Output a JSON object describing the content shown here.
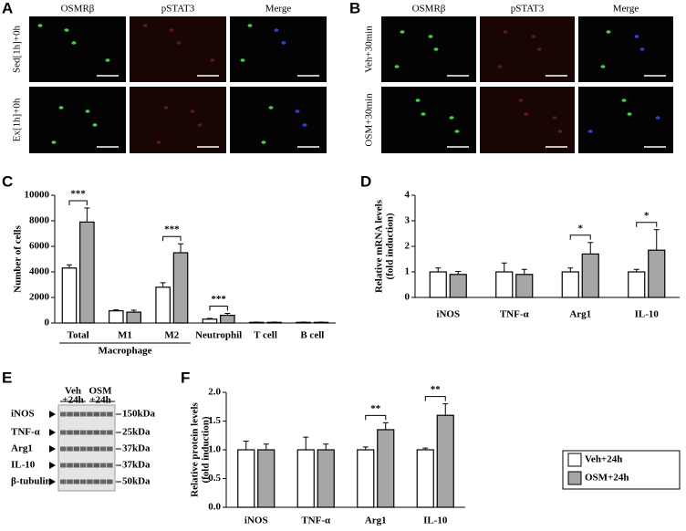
{
  "image_panels": [
    {
      "letter": "A",
      "columns": [
        "OSMRβ",
        "pSTAT3",
        "Merge"
      ],
      "rows": [
        "Sed[1h]+0h",
        "Ex[1h]+0h"
      ]
    },
    {
      "letter": "B",
      "columns": [
        "OSMRβ",
        "pSTAT3",
        "Merge"
      ],
      "rows": [
        "Veh+30min",
        "OSM+30min"
      ]
    }
  ],
  "blot": {
    "letter": "E",
    "groups": [
      [
        "Veh",
        "+24h"
      ],
      [
        "OSM",
        "+24h"
      ]
    ],
    "proteins": [
      "iNOS",
      "TNF-α",
      "Arg1",
      "IL-10",
      "β-tubulin"
    ],
    "sizes": [
      "150kDa",
      "25kDa",
      "37kDa",
      "37kDa",
      "50kDa"
    ]
  },
  "chart_data": [
    {
      "type": "bar",
      "letter": "C",
      "y_label": [
        "Number of cells"
      ],
      "categories": [
        "Total",
        "M1",
        "M2",
        "Neutrophil",
        "T cell",
        "B cell"
      ],
      "group_label": "Macrophage",
      "series": [
        {
          "color": "#ffffff",
          "values": [
            4300,
            950,
            2800,
            300,
            50,
            50
          ],
          "errors": [
            250,
            80,
            350,
            60,
            20,
            20
          ]
        },
        {
          "color": "#a6a6a6",
          "values": [
            7900,
            850,
            5500,
            600,
            50,
            50
          ],
          "errors": [
            1100,
            150,
            700,
            150,
            20,
            20
          ]
        }
      ],
      "significance": [
        "***",
        null,
        "***",
        "***",
        null,
        null
      ],
      "ylim": [
        0,
        10000
      ],
      "yticks": [
        0,
        2000,
        4000,
        6000,
        8000,
        10000
      ]
    },
    {
      "type": "bar",
      "letter": "D",
      "y_label": [
        "Relative mRNA levels",
        "(fold induction)"
      ],
      "categories": [
        "iNOS",
        "TNF-α",
        "Arg1",
        "IL-10"
      ],
      "series": [
        {
          "color": "#ffffff",
          "values": [
            1.0,
            1.0,
            1.0,
            1.0
          ],
          "errors": [
            0.15,
            0.35,
            0.15,
            0.1
          ]
        },
        {
          "color": "#a6a6a6",
          "values": [
            0.9,
            0.9,
            1.7,
            1.85
          ],
          "errors": [
            0.12,
            0.2,
            0.45,
            0.8
          ]
        }
      ],
      "significance": [
        null,
        null,
        "*",
        "*"
      ],
      "ylim": [
        0,
        4
      ],
      "yticks": [
        0,
        1,
        2,
        3,
        4
      ]
    },
    {
      "type": "bar",
      "letter": "F",
      "y_label": [
        "Relative protein levels",
        "(fold induction)"
      ],
      "categories": [
        "iNOS",
        "TNF-α",
        "Arg1",
        "IL-10"
      ],
      "series": [
        {
          "name": "Veh+24h",
          "color": "#ffffff",
          "values": [
            1.0,
            1.0,
            1.0,
            1.0
          ],
          "errors": [
            0.15,
            0.22,
            0.05,
            0.03
          ]
        },
        {
          "name": "OSM+24h",
          "color": "#a6a6a6",
          "values": [
            1.0,
            1.0,
            1.35,
            1.6
          ],
          "errors": [
            0.1,
            0.1,
            0.12,
            0.2
          ]
        }
      ],
      "significance": [
        null,
        null,
        "**",
        "**"
      ],
      "ylim": [
        0,
        2.0
      ],
      "yticks": [
        {
          "value": 0,
          "label": "0.0"
        },
        {
          "value": 0.5,
          "label": "0.5"
        },
        {
          "value": 1.0,
          "label": "1.0"
        },
        {
          "value": 1.5,
          "label": "1.5"
        },
        {
          "value": 2.0,
          "label": "2.0"
        }
      ]
    }
  ]
}
